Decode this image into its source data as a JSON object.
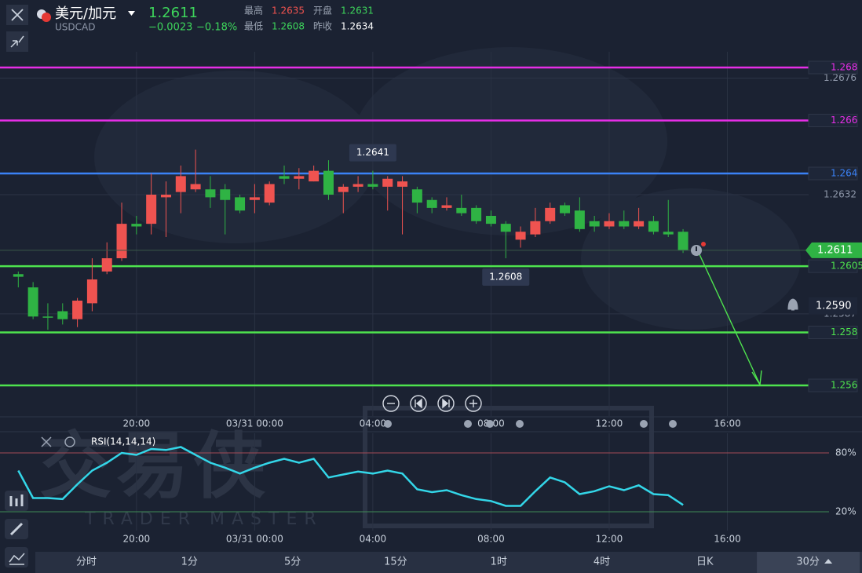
{
  "header": {
    "pair": "美元/加元",
    "symbol": "USDCAD",
    "price": "1.2611",
    "change": "−0.0023",
    "change_pct": "−0.18%",
    "stats": [
      {
        "label": "最高",
        "value": "1.2635",
        "color": "#f0534f"
      },
      {
        "label": "开盘",
        "value": "1.2631",
        "color": "#3dd45b"
      },
      {
        "label": "最低",
        "value": "1.2608",
        "color": "#3dd45b"
      },
      {
        "label": "昨收",
        "value": "1.2634",
        "color": "#ffffff"
      }
    ]
  },
  "watermark": {
    "title": "交易侠",
    "subtitle": "TRADER MASTER"
  },
  "tabs": {
    "items": [
      "分时",
      "1分",
      "5分",
      "15分",
      "1时",
      "4时",
      "日K",
      "30分"
    ],
    "selected": 7
  },
  "chart_data": [
    {
      "type": "candlestick",
      "up_color": "#ef5350",
      "down_color": "#2fb344",
      "xlim": [
        -1,
        53.5
      ],
      "xticks": [
        {
          "value": 8,
          "label": "20:00"
        },
        {
          "value": 16,
          "label": "03/31 00:00"
        },
        {
          "value": 24,
          "label": "04:00"
        },
        {
          "value": 32,
          "label": "08:00"
        },
        {
          "value": 40,
          "label": "12:00"
        },
        {
          "value": 48,
          "label": "16:00"
        }
      ],
      "ylim": [
        1.2548,
        1.2686
      ],
      "yticks": [
        1.2676,
        1.2632,
        1.2587
      ],
      "open": [
        1.2602,
        1.2597,
        1.2586,
        1.2588,
        1.2585,
        1.2591,
        1.2603,
        1.2608,
        1.2621,
        1.2621,
        1.2631,
        1.2633,
        1.2634,
        1.2634,
        1.2634,
        1.2631,
        1.263,
        1.2629,
        1.2639,
        1.2638,
        1.2637,
        1.2641,
        1.2633,
        1.2635,
        1.2636,
        1.2635,
        1.2635,
        1.2634,
        1.263,
        1.2627,
        1.2627,
        1.2627,
        1.2624,
        1.2621,
        1.2615,
        1.2617,
        1.2622,
        1.2628,
        1.2626,
        1.2622,
        1.262,
        1.2622,
        1.262,
        1.2622,
        1.2618,
        1.2618
      ],
      "high": [
        1.2603,
        1.2599,
        1.2591,
        1.2591,
        1.2593,
        1.2608,
        1.2614,
        1.2629,
        1.2624,
        1.264,
        1.2637,
        1.2643,
        1.2649,
        1.2639,
        1.2636,
        1.2632,
        1.2636,
        1.2637,
        1.2643,
        1.2642,
        1.2643,
        1.2645,
        1.2636,
        1.2639,
        1.2641,
        1.2639,
        1.2639,
        1.2635,
        1.2631,
        1.2631,
        1.2632,
        1.2628,
        1.2626,
        1.2622,
        1.262,
        1.2627,
        1.2629,
        1.2629,
        1.2631,
        1.2624,
        1.2625,
        1.2626,
        1.2627,
        1.2624,
        1.263,
        1.2619
      ],
      "low": [
        1.2597,
        1.2585,
        1.2581,
        1.2583,
        1.2582,
        1.2588,
        1.2602,
        1.2607,
        1.2617,
        1.2617,
        1.2616,
        1.2625,
        1.2633,
        1.2627,
        1.2617,
        1.2625,
        1.2625,
        1.2628,
        1.2636,
        1.2634,
        1.2637,
        1.263,
        1.2625,
        1.2633,
        1.2634,
        1.2626,
        1.2617,
        1.2625,
        1.2625,
        1.2626,
        1.2624,
        1.2621,
        1.262,
        1.2608,
        1.2612,
        1.2616,
        1.2621,
        1.2624,
        1.2618,
        1.2618,
        1.2619,
        1.2619,
        1.2619,
        1.2617,
        1.2616,
        1.261
      ],
      "close": [
        1.2601,
        1.2586,
        1.2586,
        1.2585,
        1.2592,
        1.26,
        1.2608,
        1.2621,
        1.262,
        1.2632,
        1.2632,
        1.2639,
        1.2636,
        1.2631,
        1.263,
        1.2626,
        1.2631,
        1.2636,
        1.2638,
        1.2639,
        1.2641,
        1.2632,
        1.2635,
        1.2636,
        1.2635,
        1.2638,
        1.2637,
        1.2629,
        1.2627,
        1.2628,
        1.2625,
        1.2622,
        1.2621,
        1.2618,
        1.2618,
        1.2622,
        1.2627,
        1.2625,
        1.2619,
        1.262,
        1.2622,
        1.262,
        1.2622,
        1.2618,
        1.2617,
        1.2611
      ],
      "price_lines": [
        {
          "value": 1.268,
          "color": "#e62ee6"
        },
        {
          "value": 1.266,
          "color": "#e62ee6"
        },
        {
          "value": 1.264,
          "color": "#3b82f6"
        },
        {
          "value": 1.2605,
          "color": "#4ee34e"
        },
        {
          "value": 1.258,
          "color": "#4ee34e"
        },
        {
          "value": 1.256,
          "color": "#4ee34e"
        }
      ],
      "last_price": 1.2611,
      "alert": {
        "value": 1.259,
        "label": "1.2590"
      },
      "markers": [
        {
          "index": 24,
          "value": 1.2641
        },
        {
          "index": 33,
          "value": 1.2608
        }
      ]
    },
    {
      "type": "line",
      "xlim": [
        -1,
        53.5
      ],
      "xticks": [
        {
          "value": 8,
          "label": "20:00"
        },
        {
          "value": 16,
          "label": "03/31 00:00"
        },
        {
          "value": 24,
          "label": "04:00"
        },
        {
          "value": 32,
          "label": "08:00"
        },
        {
          "value": 40,
          "label": "12:00"
        },
        {
          "value": 48,
          "label": "16:00"
        }
      ],
      "ylim": [
        0,
        100
      ],
      "yticks": [
        {
          "value": 80,
          "label": "80%"
        },
        {
          "value": 20,
          "label": "20%"
        }
      ],
      "series": [
        {
          "name": "RSI(14,14,14)",
          "color": "#33d6e8",
          "values": [
            62,
            34,
            34,
            33,
            48,
            62,
            70,
            80,
            78,
            84,
            83,
            86,
            78,
            70,
            65,
            59,
            65,
            70,
            74,
            70,
            74,
            55,
            58,
            61,
            59,
            62,
            59,
            43,
            40,
            42,
            37,
            33,
            31,
            26,
            26,
            41,
            55,
            50,
            38,
            41,
            46,
            42,
            47,
            38,
            37,
            27
          ]
        }
      ]
    }
  ]
}
